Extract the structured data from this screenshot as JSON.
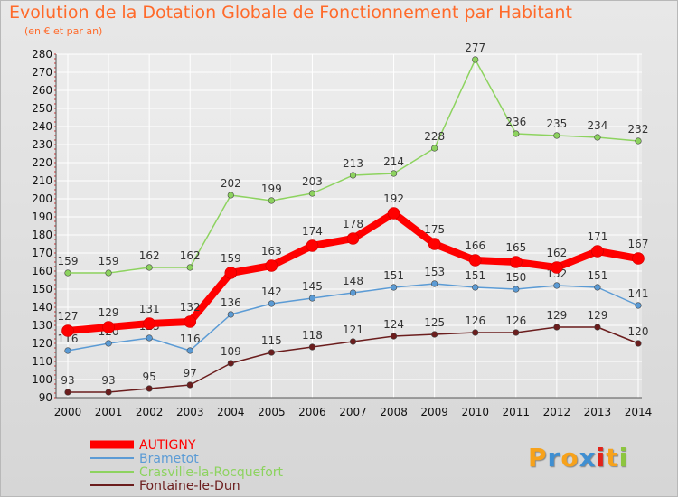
{
  "chart_data": {
    "type": "line",
    "title": "Evolution de la Dotation Globale de Fonctionnement par Habitant",
    "subtitle": "(en € et par an)",
    "x": [
      "2000",
      "2001",
      "2002",
      "2003",
      "2004",
      "2005",
      "2006",
      "2007",
      "2008",
      "2009",
      "2010",
      "2011",
      "2012",
      "2013",
      "2014"
    ],
    "ylim": [
      90,
      280
    ],
    "yticks": [
      90,
      100,
      110,
      120,
      130,
      140,
      150,
      160,
      170,
      180,
      190,
      200,
      210,
      220,
      230,
      240,
      250,
      260,
      270,
      280
    ],
    "grid": true,
    "legend_position": "bottom-left",
    "series": [
      {
        "name": "AUTIGNY",
        "color": "#ff0000",
        "emphasis": true,
        "values": [
          127,
          129,
          131,
          132,
          159,
          163,
          174,
          178,
          192,
          175,
          166,
          165,
          162,
          171,
          167
        ]
      },
      {
        "name": "Brametot",
        "color": "#5b9bd5",
        "values": [
          116,
          120,
          123,
          116,
          136,
          142,
          145,
          148,
          151,
          153,
          151,
          150,
          152,
          151,
          141
        ]
      },
      {
        "name": "Crasville-la-Rocquefort",
        "color": "#8dd35f",
        "values": [
          159,
          159,
          162,
          162,
          202,
          199,
          203,
          213,
          214,
          228,
          277,
          236,
          235,
          234,
          232
        ]
      },
      {
        "name": "Fontaine-le-Dun",
        "color": "#6b1d1d",
        "values": [
          93,
          93,
          95,
          97,
          109,
          115,
          118,
          121,
          124,
          125,
          126,
          126,
          129,
          129,
          120
        ]
      }
    ]
  },
  "logo": {
    "letters": [
      "P",
      "r",
      "o",
      "x",
      "i",
      "t",
      "i"
    ],
    "colors": [
      "#f7a21b",
      "#3f8fd2",
      "#f7a21b",
      "#3f8fd2",
      "#e2231a",
      "#f7a21b",
      "#8dc63f"
    ]
  }
}
